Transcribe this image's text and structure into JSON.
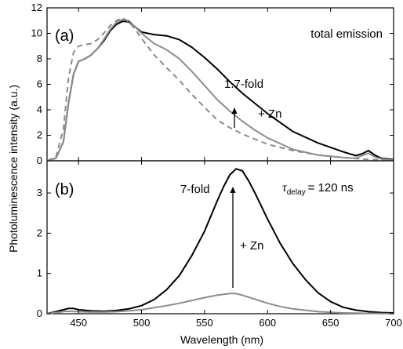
{
  "chart_data": [
    {
      "type": "line",
      "panel_label": "(a)",
      "xlim": [
        425,
        700
      ],
      "ylim": [
        0,
        12
      ],
      "xticks": [
        450,
        500,
        550,
        600,
        650,
        700
      ],
      "yticks": [
        0,
        2,
        4,
        6,
        8,
        10,
        12
      ],
      "ylabel": "Photoluminescence intensity (a.u.)",
      "annotations": {
        "total": "total emission",
        "fold": "1.7-fold",
        "zn": "+ Zn"
      },
      "series": [
        {
          "style": "solid",
          "color": "#000000",
          "x": [
            425,
            432,
            438,
            442,
            446,
            450,
            455,
            460,
            465,
            470,
            475,
            480,
            485,
            490,
            495,
            500,
            510,
            520,
            530,
            540,
            550,
            560,
            570,
            580,
            590,
            600,
            620,
            640,
            660,
            670,
            675,
            680,
            685,
            690,
            700
          ],
          "y": [
            0,
            0.2,
            1.5,
            4.5,
            6.8,
            7.8,
            8.0,
            8.3,
            8.8,
            9.4,
            10.2,
            10.7,
            10.95,
            10.9,
            10.5,
            10.1,
            9.9,
            9.8,
            9.5,
            8.9,
            8.1,
            7.2,
            6.2,
            5.3,
            4.5,
            3.7,
            2.3,
            1.4,
            0.7,
            0.4,
            0.55,
            0.8,
            0.45,
            0.2,
            0.1
          ]
        },
        {
          "style": "solid",
          "color": "#8c8c8c",
          "x": [
            425,
            432,
            438,
            442,
            446,
            450,
            455,
            460,
            465,
            470,
            475,
            480,
            485,
            490,
            495,
            500,
            510,
            520,
            530,
            540,
            550,
            560,
            570,
            580,
            590,
            600,
            620,
            640,
            660,
            670,
            675,
            680,
            685,
            690,
            700
          ],
          "y": [
            0,
            0.2,
            1.5,
            4.5,
            6.8,
            7.8,
            8.0,
            8.3,
            8.8,
            9.5,
            10.3,
            10.85,
            11.1,
            11.0,
            10.5,
            10.0,
            9.2,
            8.7,
            8.0,
            7.0,
            5.9,
            4.8,
            3.9,
            3.1,
            2.4,
            1.8,
            0.9,
            0.45,
            0.25,
            0.2,
            0.4,
            0.6,
            0.3,
            0.15,
            0.05
          ]
        },
        {
          "style": "dashed",
          "color": "#8c8c8c",
          "x": [
            425,
            432,
            438,
            442,
            446,
            450,
            455,
            460,
            465,
            470,
            475,
            480,
            485,
            490,
            495,
            500,
            510,
            520,
            530,
            540,
            550,
            560,
            570,
            580,
            590,
            600,
            620,
            640,
            660,
            680,
            700
          ],
          "y": [
            0,
            0.3,
            2.5,
            6.5,
            8.5,
            9.0,
            9.1,
            9.2,
            9.5,
            10.0,
            10.6,
            11.0,
            11.2,
            10.9,
            10.3,
            9.6,
            8.3,
            7.3,
            6.3,
            5.2,
            4.2,
            3.2,
            2.6,
            2.1,
            1.7,
            1.3,
            0.8,
            0.45,
            0.25,
            0.1,
            0.05
          ]
        }
      ]
    },
    {
      "type": "line",
      "panel_label": "(b)",
      "xlim": [
        425,
        700
      ],
      "ylim": [
        0,
        3.8
      ],
      "xticks": [
        450,
        500,
        550,
        600,
        650,
        700
      ],
      "yticks": [
        0,
        1,
        2,
        3
      ],
      "xlabel": "Wavelength (nm)",
      "annotations": {
        "fold": "7-fold",
        "zn": "+ Zn",
        "tau_symbol": "τ",
        "tau_sub": "delay",
        "tau_value": "= 120 ns"
      },
      "series": [
        {
          "style": "solid",
          "color": "#000000",
          "x": [
            425,
            432,
            438,
            442,
            446,
            450,
            460,
            470,
            480,
            490,
            500,
            510,
            520,
            530,
            540,
            550,
            560,
            565,
            570,
            575,
            580,
            585,
            590,
            600,
            610,
            620,
            630,
            640,
            650,
            660,
            670,
            680,
            690,
            700
          ],
          "y": [
            0,
            0.05,
            0.1,
            0.13,
            0.13,
            0.1,
            0.07,
            0.06,
            0.08,
            0.12,
            0.2,
            0.35,
            0.6,
            0.95,
            1.45,
            2.05,
            2.8,
            3.15,
            3.45,
            3.6,
            3.55,
            3.3,
            3.0,
            2.35,
            1.75,
            1.25,
            0.85,
            0.52,
            0.3,
            0.16,
            0.09,
            0.05,
            0.03,
            0.02
          ]
        },
        {
          "style": "solid",
          "color": "#8c8c8c",
          "x": [
            425,
            440,
            450,
            460,
            470,
            480,
            490,
            500,
            510,
            520,
            530,
            540,
            550,
            560,
            570,
            575,
            580,
            590,
            600,
            610,
            620,
            640,
            660,
            680,
            700
          ],
          "y": [
            0,
            0.06,
            0.05,
            0.04,
            0.04,
            0.05,
            0.07,
            0.1,
            0.15,
            0.2,
            0.26,
            0.33,
            0.4,
            0.46,
            0.5,
            0.5,
            0.46,
            0.36,
            0.26,
            0.18,
            0.12,
            0.05,
            0.02,
            0.01,
            0
          ]
        }
      ]
    }
  ]
}
